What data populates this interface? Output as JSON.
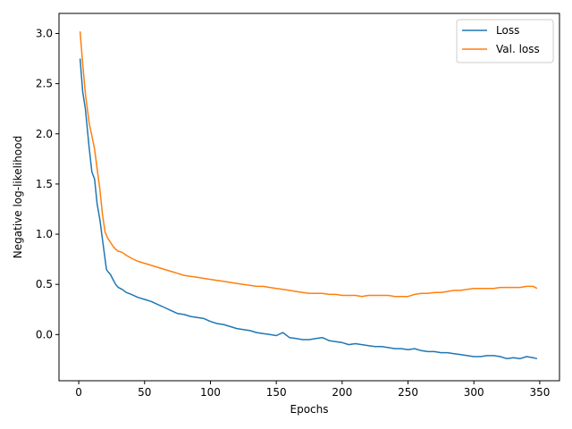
{
  "chart_data": {
    "type": "line",
    "title": "",
    "xlabel": "Epochs",
    "ylabel": "Negative log-likelihood",
    "xlim": [
      -15,
      365
    ],
    "ylim": [
      -0.46,
      3.2
    ],
    "xticks": [
      0,
      50,
      100,
      150,
      200,
      250,
      300,
      350
    ],
    "xtick_labels": [
      "0",
      "50",
      "100",
      "150",
      "200",
      "250",
      "300",
      "350"
    ],
    "yticks": [
      0.0,
      0.5,
      1.0,
      1.5,
      2.0,
      2.5,
      3.0
    ],
    "ytick_labels": [
      "0.0",
      "0.5",
      "1.0",
      "1.5",
      "2.0",
      "2.5",
      "3.0"
    ],
    "grid": false,
    "legend": "top-right",
    "series": [
      {
        "name": "Loss",
        "color": "#1f77b4",
        "x": [
          1,
          3,
          5,
          8,
          10,
          12,
          14,
          16,
          18,
          20,
          21,
          22,
          24,
          26,
          28,
          30,
          33,
          36,
          40,
          45,
          50,
          55,
          60,
          65,
          70,
          75,
          80,
          85,
          90,
          95,
          100,
          105,
          110,
          115,
          120,
          125,
          130,
          135,
          140,
          145,
          150,
          155,
          160,
          165,
          170,
          175,
          180,
          185,
          190,
          195,
          200,
          205,
          210,
          215,
          220,
          225,
          230,
          235,
          240,
          245,
          250,
          255,
          260,
          265,
          270,
          275,
          280,
          285,
          290,
          295,
          300,
          305,
          310,
          315,
          320,
          325,
          330,
          335,
          340,
          345,
          348
        ],
        "values": [
          2.75,
          2.42,
          2.25,
          1.85,
          1.62,
          1.55,
          1.3,
          1.15,
          0.95,
          0.75,
          0.65,
          0.63,
          0.6,
          0.55,
          0.5,
          0.47,
          0.45,
          0.42,
          0.4,
          0.37,
          0.35,
          0.33,
          0.3,
          0.27,
          0.24,
          0.21,
          0.2,
          0.18,
          0.17,
          0.16,
          0.13,
          0.11,
          0.1,
          0.08,
          0.06,
          0.05,
          0.04,
          0.02,
          0.01,
          0.0,
          -0.01,
          0.02,
          -0.03,
          -0.04,
          -0.05,
          -0.05,
          -0.04,
          -0.03,
          -0.06,
          -0.07,
          -0.08,
          -0.1,
          -0.09,
          -0.1,
          -0.11,
          -0.12,
          -0.12,
          -0.13,
          -0.14,
          -0.14,
          -0.15,
          -0.14,
          -0.16,
          -0.17,
          -0.17,
          -0.18,
          -0.18,
          -0.19,
          -0.2,
          -0.21,
          -0.22,
          -0.22,
          -0.21,
          -0.21,
          -0.22,
          -0.24,
          -0.23,
          -0.24,
          -0.22,
          -0.23,
          -0.24
        ]
      },
      {
        "name": "Val. loss",
        "color": "#ff7f0e",
        "x": [
          1,
          3,
          5,
          8,
          10,
          12,
          14,
          16,
          18,
          20,
          21,
          22,
          24,
          26,
          28,
          30,
          33,
          36,
          40,
          45,
          50,
          55,
          60,
          65,
          70,
          75,
          80,
          85,
          90,
          95,
          100,
          105,
          110,
          115,
          120,
          125,
          130,
          135,
          140,
          145,
          150,
          155,
          160,
          165,
          170,
          175,
          180,
          185,
          190,
          195,
          200,
          205,
          210,
          215,
          220,
          225,
          230,
          235,
          240,
          245,
          250,
          255,
          260,
          265,
          270,
          275,
          280,
          285,
          290,
          295,
          300,
          305,
          310,
          315,
          320,
          325,
          330,
          335,
          340,
          345,
          348
        ],
        "values": [
          3.02,
          2.7,
          2.4,
          2.1,
          1.98,
          1.85,
          1.65,
          1.45,
          1.2,
          1.02,
          0.99,
          0.96,
          0.92,
          0.88,
          0.85,
          0.83,
          0.82,
          0.79,
          0.76,
          0.73,
          0.71,
          0.69,
          0.67,
          0.65,
          0.63,
          0.61,
          0.59,
          0.58,
          0.57,
          0.56,
          0.55,
          0.54,
          0.53,
          0.52,
          0.51,
          0.5,
          0.49,
          0.48,
          0.48,
          0.47,
          0.46,
          0.45,
          0.44,
          0.43,
          0.42,
          0.41,
          0.41,
          0.41,
          0.4,
          0.4,
          0.39,
          0.39,
          0.39,
          0.38,
          0.39,
          0.39,
          0.39,
          0.39,
          0.38,
          0.38,
          0.38,
          0.4,
          0.41,
          0.41,
          0.42,
          0.42,
          0.43,
          0.44,
          0.44,
          0.45,
          0.46,
          0.46,
          0.46,
          0.46,
          0.47,
          0.47,
          0.47,
          0.47,
          0.48,
          0.48,
          0.46
        ]
      }
    ]
  }
}
